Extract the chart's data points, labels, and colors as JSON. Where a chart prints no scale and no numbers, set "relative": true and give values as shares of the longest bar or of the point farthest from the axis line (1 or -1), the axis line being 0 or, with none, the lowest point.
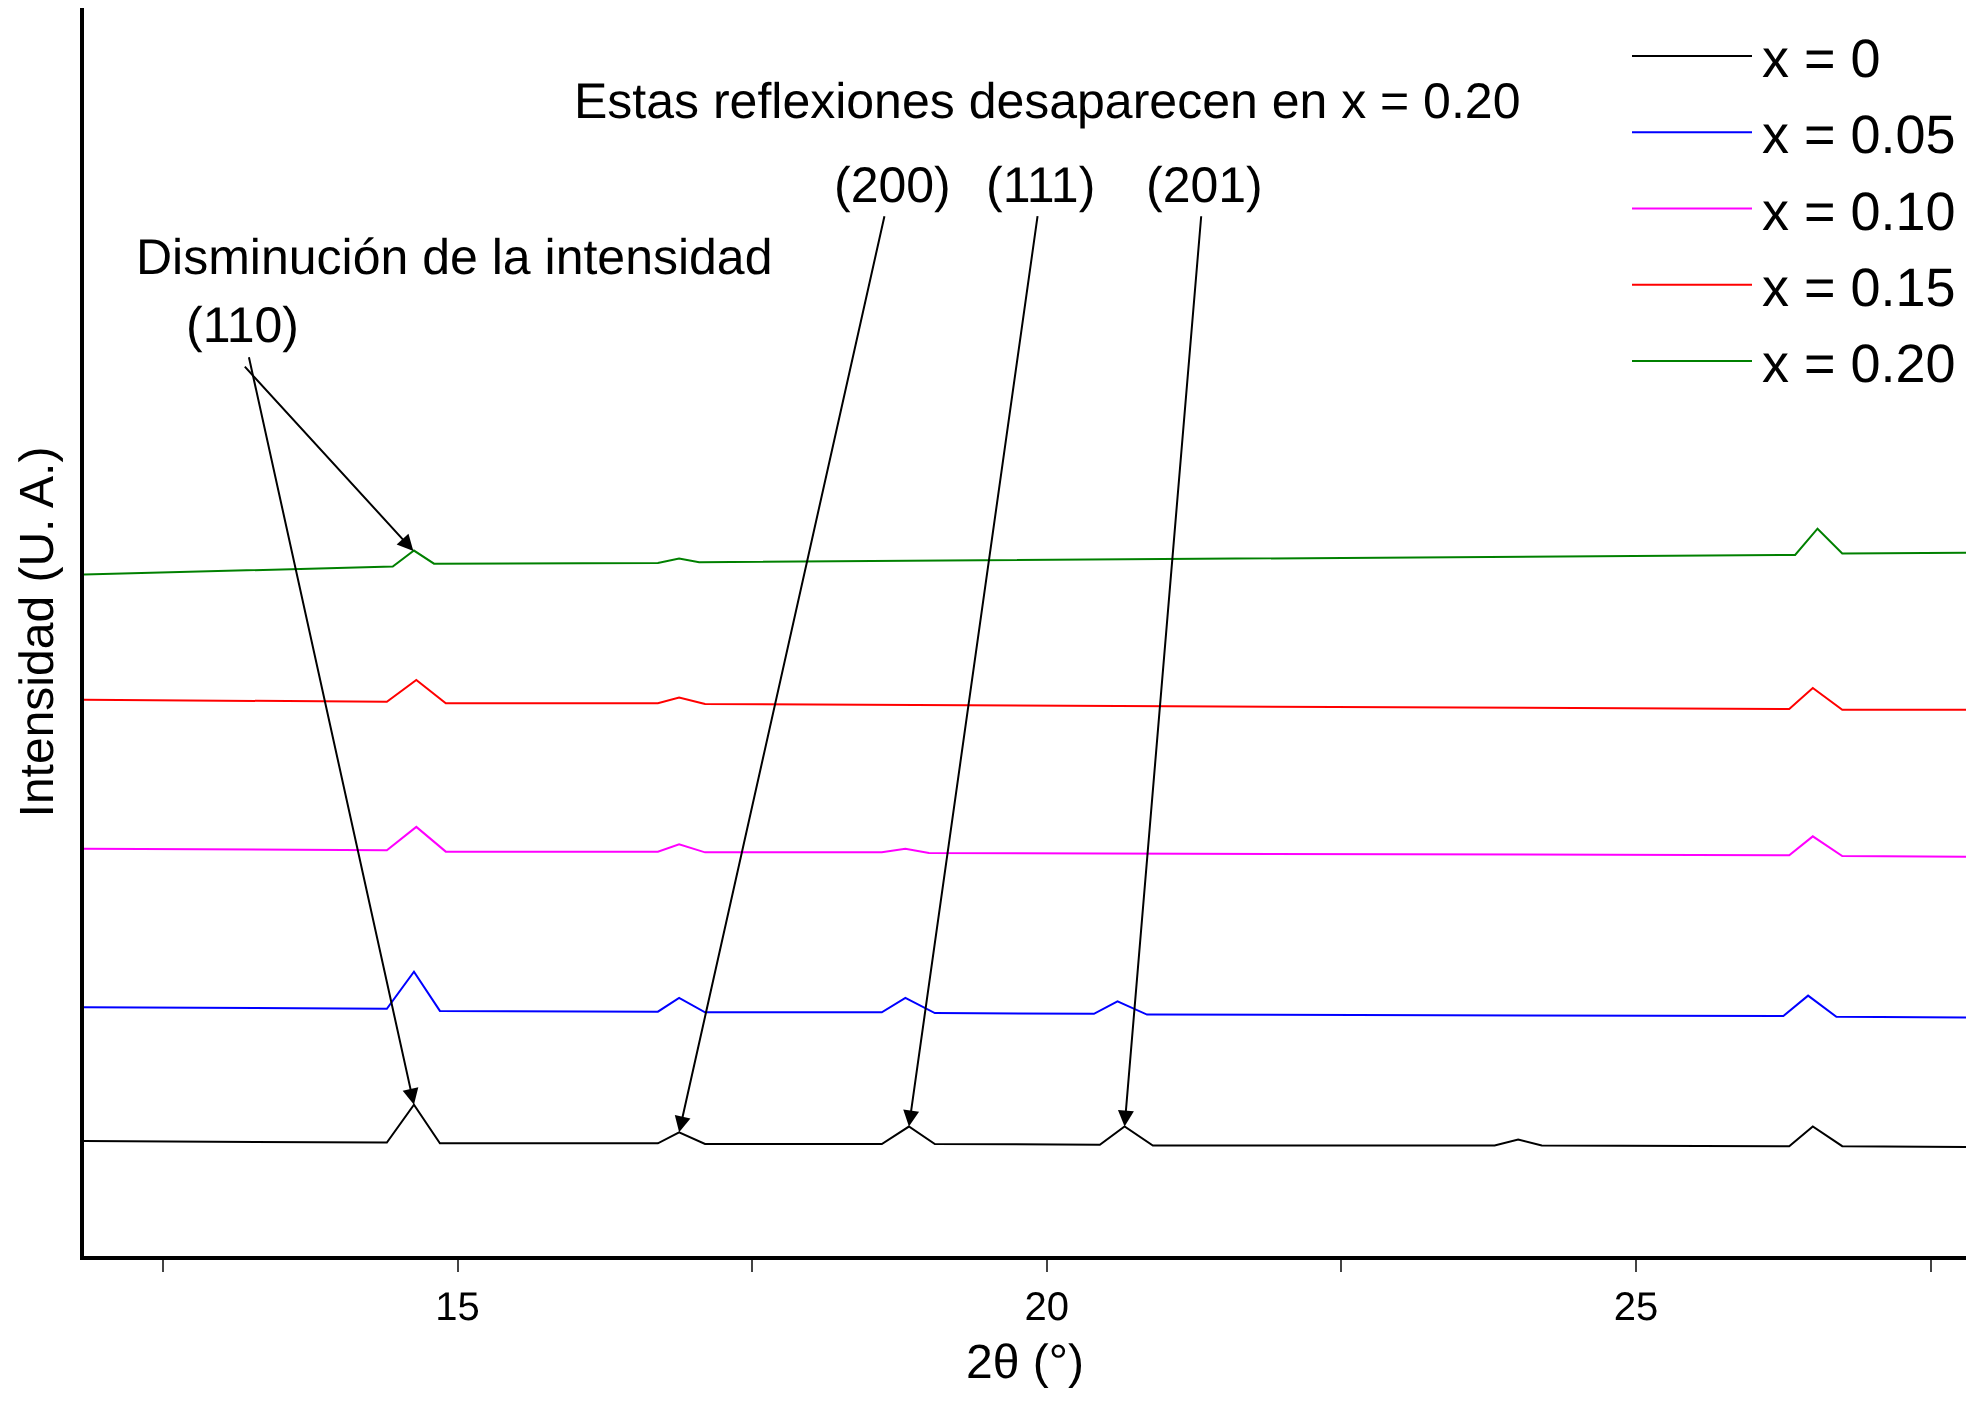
{
  "chart_data": {
    "type": "line",
    "relative": true,
    "xlabel": "2θ (°)",
    "ylabel": "Intensidad (U. A.)",
    "xlim": [
      11.83,
      27.8
    ],
    "xticks": [
      {
        "value": 12.5,
        "label": null
      },
      15,
      {
        "value": 17.5,
        "label": null
      },
      20,
      {
        "value": 22.5,
        "label": null
      },
      25,
      {
        "value": 27.5,
        "label": null
      }
    ],
    "tick_labels": "x",
    "legend": "top right",
    "series": [
      {
        "name": "x = 0",
        "color": "#000000",
        "x": [
          11.83,
          14.4,
          14.63,
          14.85,
          16.7,
          16.88,
          17.1,
          18.6,
          18.83,
          19.05,
          20.45,
          20.66,
          20.9,
          23.8,
          24.0,
          24.2,
          26.3,
          26.5,
          26.75,
          27.8
        ],
        "values": [
          0.158,
          0.156,
          0.208,
          0.155,
          0.155,
          0.17,
          0.154,
          0.154,
          0.178,
          0.154,
          0.153,
          0.178,
          0.152,
          0.152,
          0.16,
          0.152,
          0.151,
          0.178,
          0.151,
          0.15
        ]
      },
      {
        "name": "x = 0.05",
        "color": "#0000ff",
        "x": [
          11.83,
          14.4,
          14.63,
          14.85,
          16.7,
          16.88,
          17.1,
          18.6,
          18.8,
          19.05,
          20.4,
          20.6,
          20.85,
          26.25,
          26.46,
          26.7,
          27.8
        ],
        "values": [
          0.342,
          0.34,
          0.391,
          0.337,
          0.336,
          0.355,
          0.335,
          0.335,
          0.355,
          0.334,
          0.333,
          0.35,
          0.332,
          0.33,
          0.358,
          0.329,
          0.328
        ]
      },
      {
        "name": "x = 0.10",
        "color": "#ff00ff",
        "x": [
          11.83,
          14.4,
          14.65,
          14.9,
          16.7,
          16.88,
          17.1,
          18.6,
          18.8,
          19.0,
          26.3,
          26.5,
          26.75,
          27.8
        ],
        "values": [
          0.56,
          0.558,
          0.59,
          0.556,
          0.556,
          0.566,
          0.555,
          0.555,
          0.56,
          0.554,
          0.551,
          0.577,
          0.55,
          0.549
        ]
      },
      {
        "name": "x = 0.15",
        "color": "#ff0000",
        "x": [
          11.83,
          14.4,
          14.65,
          14.9,
          16.7,
          16.88,
          17.1,
          26.3,
          26.5,
          26.75,
          27.8
        ],
        "values": [
          0.765,
          0.762,
          0.792,
          0.76,
          0.76,
          0.768,
          0.759,
          0.752,
          0.781,
          0.751,
          0.751
        ]
      },
      {
        "name": "x = 0.20",
        "color": "#008000",
        "x": [
          11.83,
          14.45,
          14.63,
          14.8,
          16.7,
          16.88,
          17.05,
          26.35,
          26.54,
          26.75,
          27.8
        ],
        "values": [
          0.937,
          0.948,
          0.97,
          0.952,
          0.953,
          0.959,
          0.954,
          0.964,
          1.0,
          0.966,
          0.967
        ]
      }
    ],
    "annotations": [
      "Estas reflexiones desaparecen en x = 0.20",
      {
        "text": "(200)",
        "x": 16.88,
        "y": 0.17
      },
      {
        "text": "(111)",
        "x": 18.83,
        "y": 0.178
      },
      {
        "text": "(201)",
        "x": 20.66,
        "y": 0.178
      },
      "Disminución de la intensidad",
      {
        "text": "(110)",
        "x": 14.63,
        "y": 0.208
      }
    ]
  }
}
